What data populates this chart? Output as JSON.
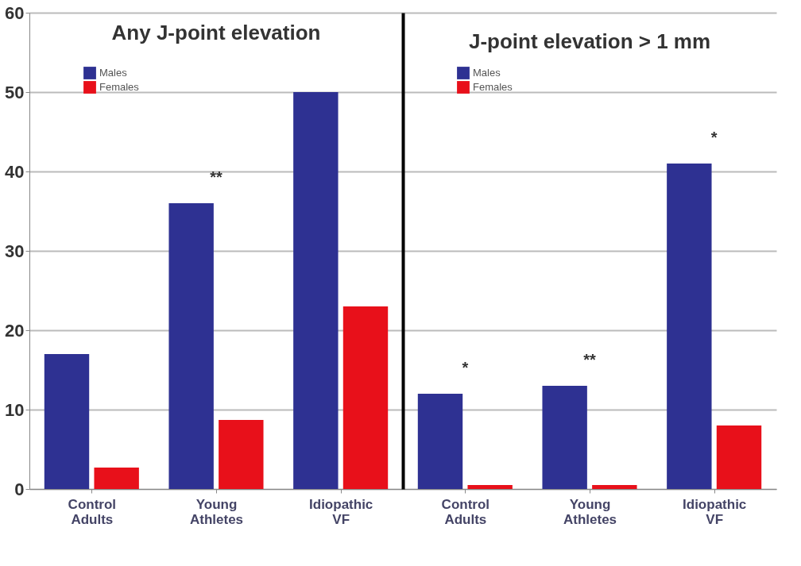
{
  "chart_data": [
    {
      "type": "bar",
      "title": "Any J-point elevation",
      "categories": [
        "Control Adults",
        "Young Athletes",
        "Idiopathic VF"
      ],
      "series": [
        {
          "name": "Males",
          "color": "#2e3192",
          "values": [
            17,
            36,
            50
          ]
        },
        {
          "name": "Females",
          "color": "#e8101a",
          "values": [
            2.7,
            8.7,
            23
          ]
        }
      ],
      "ylim": [
        0,
        60
      ],
      "yticks": [
        0,
        10,
        20,
        30,
        40,
        50,
        60
      ],
      "grid": "y",
      "legend": "top left",
      "annotations": [
        {
          "text": "**",
          "x": "Young Athletes",
          "y": 36
        }
      ]
    },
    {
      "type": "bar",
      "title": "J-point elevation > 1 mm",
      "categories": [
        "Control Adults",
        "Young Athletes",
        "Idiopathic VF"
      ],
      "series": [
        {
          "name": "Males",
          "color": "#2e3192",
          "values": [
            12,
            13,
            41
          ]
        },
        {
          "name": "Females",
          "color": "#e8101a",
          "values": [
            0.5,
            0.5,
            8
          ]
        }
      ],
      "ylim": [
        0,
        60
      ],
      "yticks": [
        0,
        10,
        20,
        30,
        40,
        50,
        60
      ],
      "grid": "y",
      "legend": "top left",
      "tick_labels": "x",
      "annotations": [
        {
          "text": "*",
          "x": "Control Adults",
          "y": 12
        },
        {
          "text": "**",
          "x": "Young Athletes",
          "y": 13
        },
        {
          "text": "*",
          "x": "Idiopathic VF",
          "y": 41
        }
      ]
    }
  ]
}
